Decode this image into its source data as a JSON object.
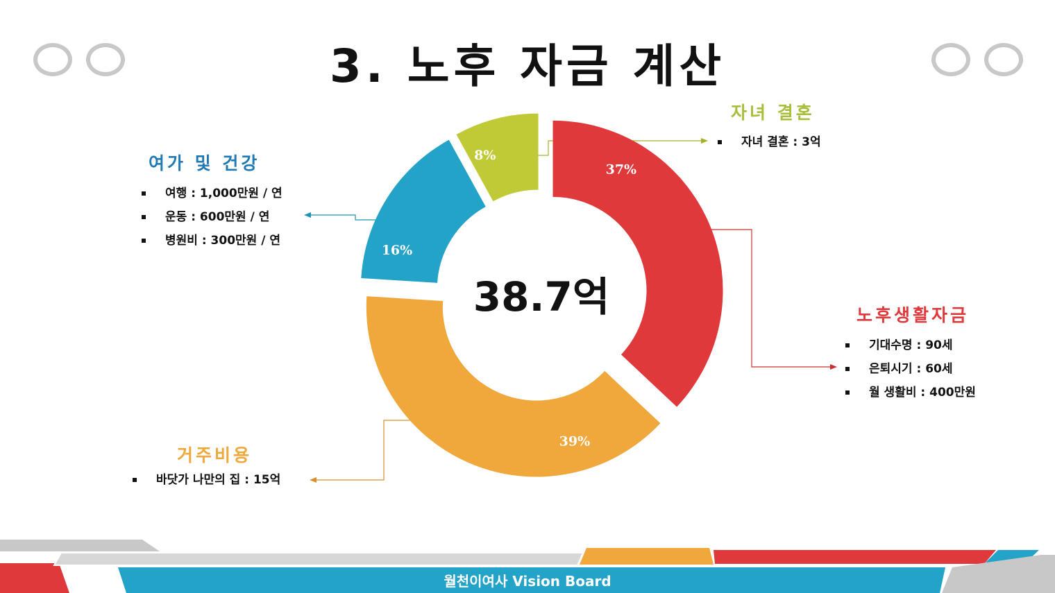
{
  "title": "3. 노후 자금 계산",
  "center_total": "38.7억",
  "footer": "월천이여사 Vision Board",
  "colors": {
    "living": "#e0393b",
    "housing": "#f0a73c",
    "leisure": "#22a3c7",
    "wedding": "#bfca36",
    "ring_gray": "#c8c8c8"
  },
  "sections": {
    "wedding": {
      "heading": "자녀 결혼",
      "items": [
        "자녀 결혼 : 3억"
      ]
    },
    "leisure": {
      "heading": "여가 및 건강",
      "items": [
        "여행 : 1,000만원 / 연",
        "운동 : 600만원 / 연",
        "병원비 : 300만원 / 연"
      ]
    },
    "living": {
      "heading": "노후생활자금",
      "items": [
        "기대수명 : 90세",
        "은퇴시기 : 60세",
        "월 생활비 : 400만원"
      ]
    },
    "housing": {
      "heading": "거주비용",
      "items": [
        "바닷가 나만의 집 : 15억"
      ]
    }
  },
  "chart_data": {
    "type": "pie",
    "donut": true,
    "categories": [
      "노후생활자금",
      "거주비용",
      "여가 및 건강",
      "자녀 결혼"
    ],
    "values": [
      37,
      39,
      16,
      8
    ],
    "labels": [
      "37%",
      "39%",
      "16%",
      "8%"
    ],
    "exploded": true,
    "center_label": "38.7억"
  }
}
